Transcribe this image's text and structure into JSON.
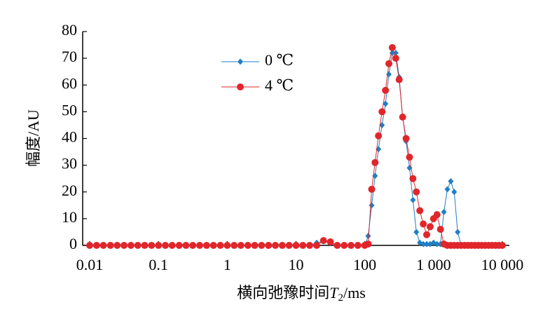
{
  "chart_data": {
    "type": "line",
    "y_label": "幅度/AU",
    "x_label": [
      "横向弛豫时间",
      "T",
      "2",
      "/ms"
    ],
    "xscale": "log",
    "xlim": [
      0.01,
      10000
    ],
    "xticks": [
      0.01,
      0.1,
      1,
      10,
      100,
      {
        "value": 1000,
        "label": "1 000"
      },
      {
        "value": 10000,
        "label": "10 000"
      }
    ],
    "ylim": [
      0,
      80
    ],
    "yticks": [
      0,
      10,
      20,
      30,
      40,
      50,
      60,
      70,
      80
    ],
    "legend": "upper left",
    "x": [
      0.01,
      0.0126,
      0.0158,
      0.02,
      0.0251,
      0.0316,
      0.0398,
      0.0501,
      0.0631,
      0.0794,
      0.1,
      0.126,
      0.158,
      0.2,
      0.251,
      0.316,
      0.398,
      0.501,
      0.631,
      0.794,
      1,
      1.26,
      1.58,
      2,
      2.51,
      3.16,
      3.98,
      5.01,
      6.31,
      7.94,
      10,
      12.6,
      15.8,
      20,
      25.1,
      31.6,
      39.8,
      50.1,
      63.1,
      79.4,
      100,
      112,
      126,
      141,
      158,
      178,
      200,
      224,
      251,
      282,
      316,
      355,
      398,
      447,
      501,
      562,
      631,
      708,
      794,
      891,
      1000,
      1122,
      1259,
      1413,
      1585,
      1778,
      1995,
      2239,
      2512,
      2818,
      3162,
      3548,
      3981,
      4467,
      5012,
      5623,
      6310,
      7079,
      7943,
      8913,
      10000
    ],
    "series": [
      {
        "name": "0 ℃",
        "color": "#1f7fc4",
        "marker": "diamond",
        "values": [
          0,
          0,
          0,
          0,
          0,
          0,
          0,
          0,
          0,
          0,
          0,
          0,
          0,
          0,
          0,
          0,
          0,
          0,
          0,
          0,
          0,
          0,
          0,
          0,
          0,
          0,
          0,
          0,
          0,
          0,
          0,
          0,
          0,
          1,
          1.5,
          1,
          0,
          0,
          0,
          0,
          0,
          3.5,
          15,
          26,
          36,
          45,
          53,
          64,
          72,
          72,
          63,
          48,
          39,
          29,
          17,
          5,
          1,
          0.5,
          0.5,
          0.5,
          1,
          0.5,
          0.5,
          12.5,
          21,
          24,
          20,
          5,
          0,
          0,
          0,
          0,
          0,
          0,
          0,
          0,
          0,
          0,
          0,
          0,
          0
        ]
      },
      {
        "name": "4 ℃",
        "color": "#e0262b",
        "marker": "circle",
        "values": [
          0,
          0,
          0,
          0,
          0,
          0,
          0,
          0,
          0,
          0,
          0,
          0,
          0,
          0,
          0,
          0,
          0,
          0,
          0,
          0,
          0,
          0,
          0,
          0,
          0,
          0,
          0,
          0,
          0,
          0,
          0,
          0,
          0,
          0,
          1.8,
          1.3,
          0,
          0,
          0,
          0,
          0,
          0.5,
          21,
          31,
          41,
          50,
          58,
          68,
          74,
          70,
          62,
          48,
          40,
          33,
          25,
          20,
          13,
          8,
          4,
          7,
          10,
          11.5,
          6,
          0.5,
          0,
          0,
          0,
          0,
          0,
          0,
          0,
          0,
          0,
          0,
          0,
          0,
          0,
          0,
          0,
          0,
          0
        ]
      }
    ]
  }
}
